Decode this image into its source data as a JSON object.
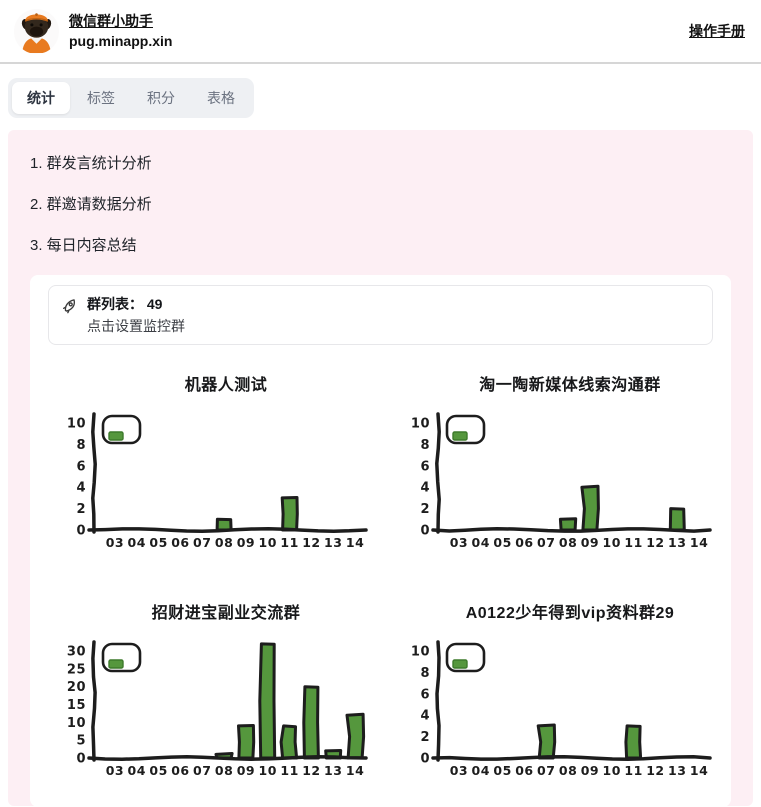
{
  "header": {
    "app_name": "微信群小助手",
    "app_domain": "pug.minapp.xin",
    "manual_link": "操作手册"
  },
  "tabs": {
    "items": [
      {
        "label": "统计",
        "active": true
      },
      {
        "label": "标签",
        "active": false
      },
      {
        "label": "积分",
        "active": false
      },
      {
        "label": "表格",
        "active": false
      }
    ]
  },
  "features": [
    "1. 群发言统计分析",
    "2. 群邀请数据分析",
    "3. 每日内容总结"
  ],
  "group_card": {
    "icon": "rocket-icon",
    "label": "群列表：",
    "count": "49",
    "subtitle": "点击设置监控群"
  },
  "colors": {
    "bar_fill": "#55973d",
    "bar_stroke": "#1d1d1d",
    "axis": "#1d1d1d",
    "chart_text": "#1d1d1d",
    "swatch_stroke": "#3d7a2b",
    "pink_bg": "#fdeff4"
  },
  "chart_data": [
    {
      "type": "bar",
      "title": "机器人测试",
      "categories": [
        "03",
        "04",
        "05",
        "06",
        "07",
        "08",
        "09",
        "10",
        "11",
        "12",
        "13",
        "14"
      ],
      "values": [
        0,
        0,
        0,
        0,
        0,
        1,
        0,
        0,
        3,
        0,
        0,
        0
      ],
      "yticks": [
        0,
        2,
        4,
        6,
        8,
        10
      ],
      "ylim": [
        0,
        10
      ],
      "xlabel": "",
      "ylabel": "",
      "grid": false,
      "legend": {
        "label": "",
        "position": "upper-left",
        "swatch_color": "#55973d"
      }
    },
    {
      "type": "bar",
      "title": "淘一陶新媒体线索沟通群",
      "categories": [
        "03",
        "04",
        "05",
        "06",
        "07",
        "08",
        "09",
        "10",
        "11",
        "12",
        "13",
        "14"
      ],
      "values": [
        0,
        0,
        0,
        0,
        0,
        1,
        4,
        0,
        0,
        0,
        2,
        0
      ],
      "yticks": [
        0,
        2,
        4,
        6,
        8,
        10
      ],
      "ylim": [
        0,
        10
      ],
      "xlabel": "",
      "ylabel": "",
      "grid": false,
      "legend": {
        "label": "",
        "position": "upper-left",
        "swatch_color": "#55973d"
      }
    },
    {
      "type": "bar",
      "title": "招财进宝副业交流群",
      "categories": [
        "03",
        "04",
        "05",
        "06",
        "07",
        "08",
        "09",
        "10",
        "11",
        "12",
        "13",
        "14"
      ],
      "values": [
        0,
        0,
        0,
        0,
        0,
        1,
        9,
        32,
        9,
        20,
        2,
        12
      ],
      "yticks": [
        0,
        5,
        10,
        15,
        20,
        25,
        30
      ],
      "ylim": [
        0,
        30
      ],
      "xlabel": "",
      "ylabel": "",
      "grid": false,
      "legend": {
        "label": "",
        "position": "upper-left",
        "swatch_color": "#55973d"
      }
    },
    {
      "type": "bar",
      "title": "A0122少年得到vip资料群29",
      "categories": [
        "03",
        "04",
        "05",
        "06",
        "07",
        "08",
        "09",
        "10",
        "11",
        "12",
        "13",
        "14"
      ],
      "values": [
        0,
        0,
        0,
        0,
        3,
        0,
        0,
        0,
        3,
        0,
        0,
        0
      ],
      "yticks": [
        0,
        2,
        4,
        6,
        8,
        10
      ],
      "ylim": [
        0,
        10
      ],
      "xlabel": "",
      "ylabel": "",
      "grid": false,
      "legend": {
        "label": "",
        "position": "upper-left",
        "swatch_color": "#55973d"
      }
    }
  ]
}
